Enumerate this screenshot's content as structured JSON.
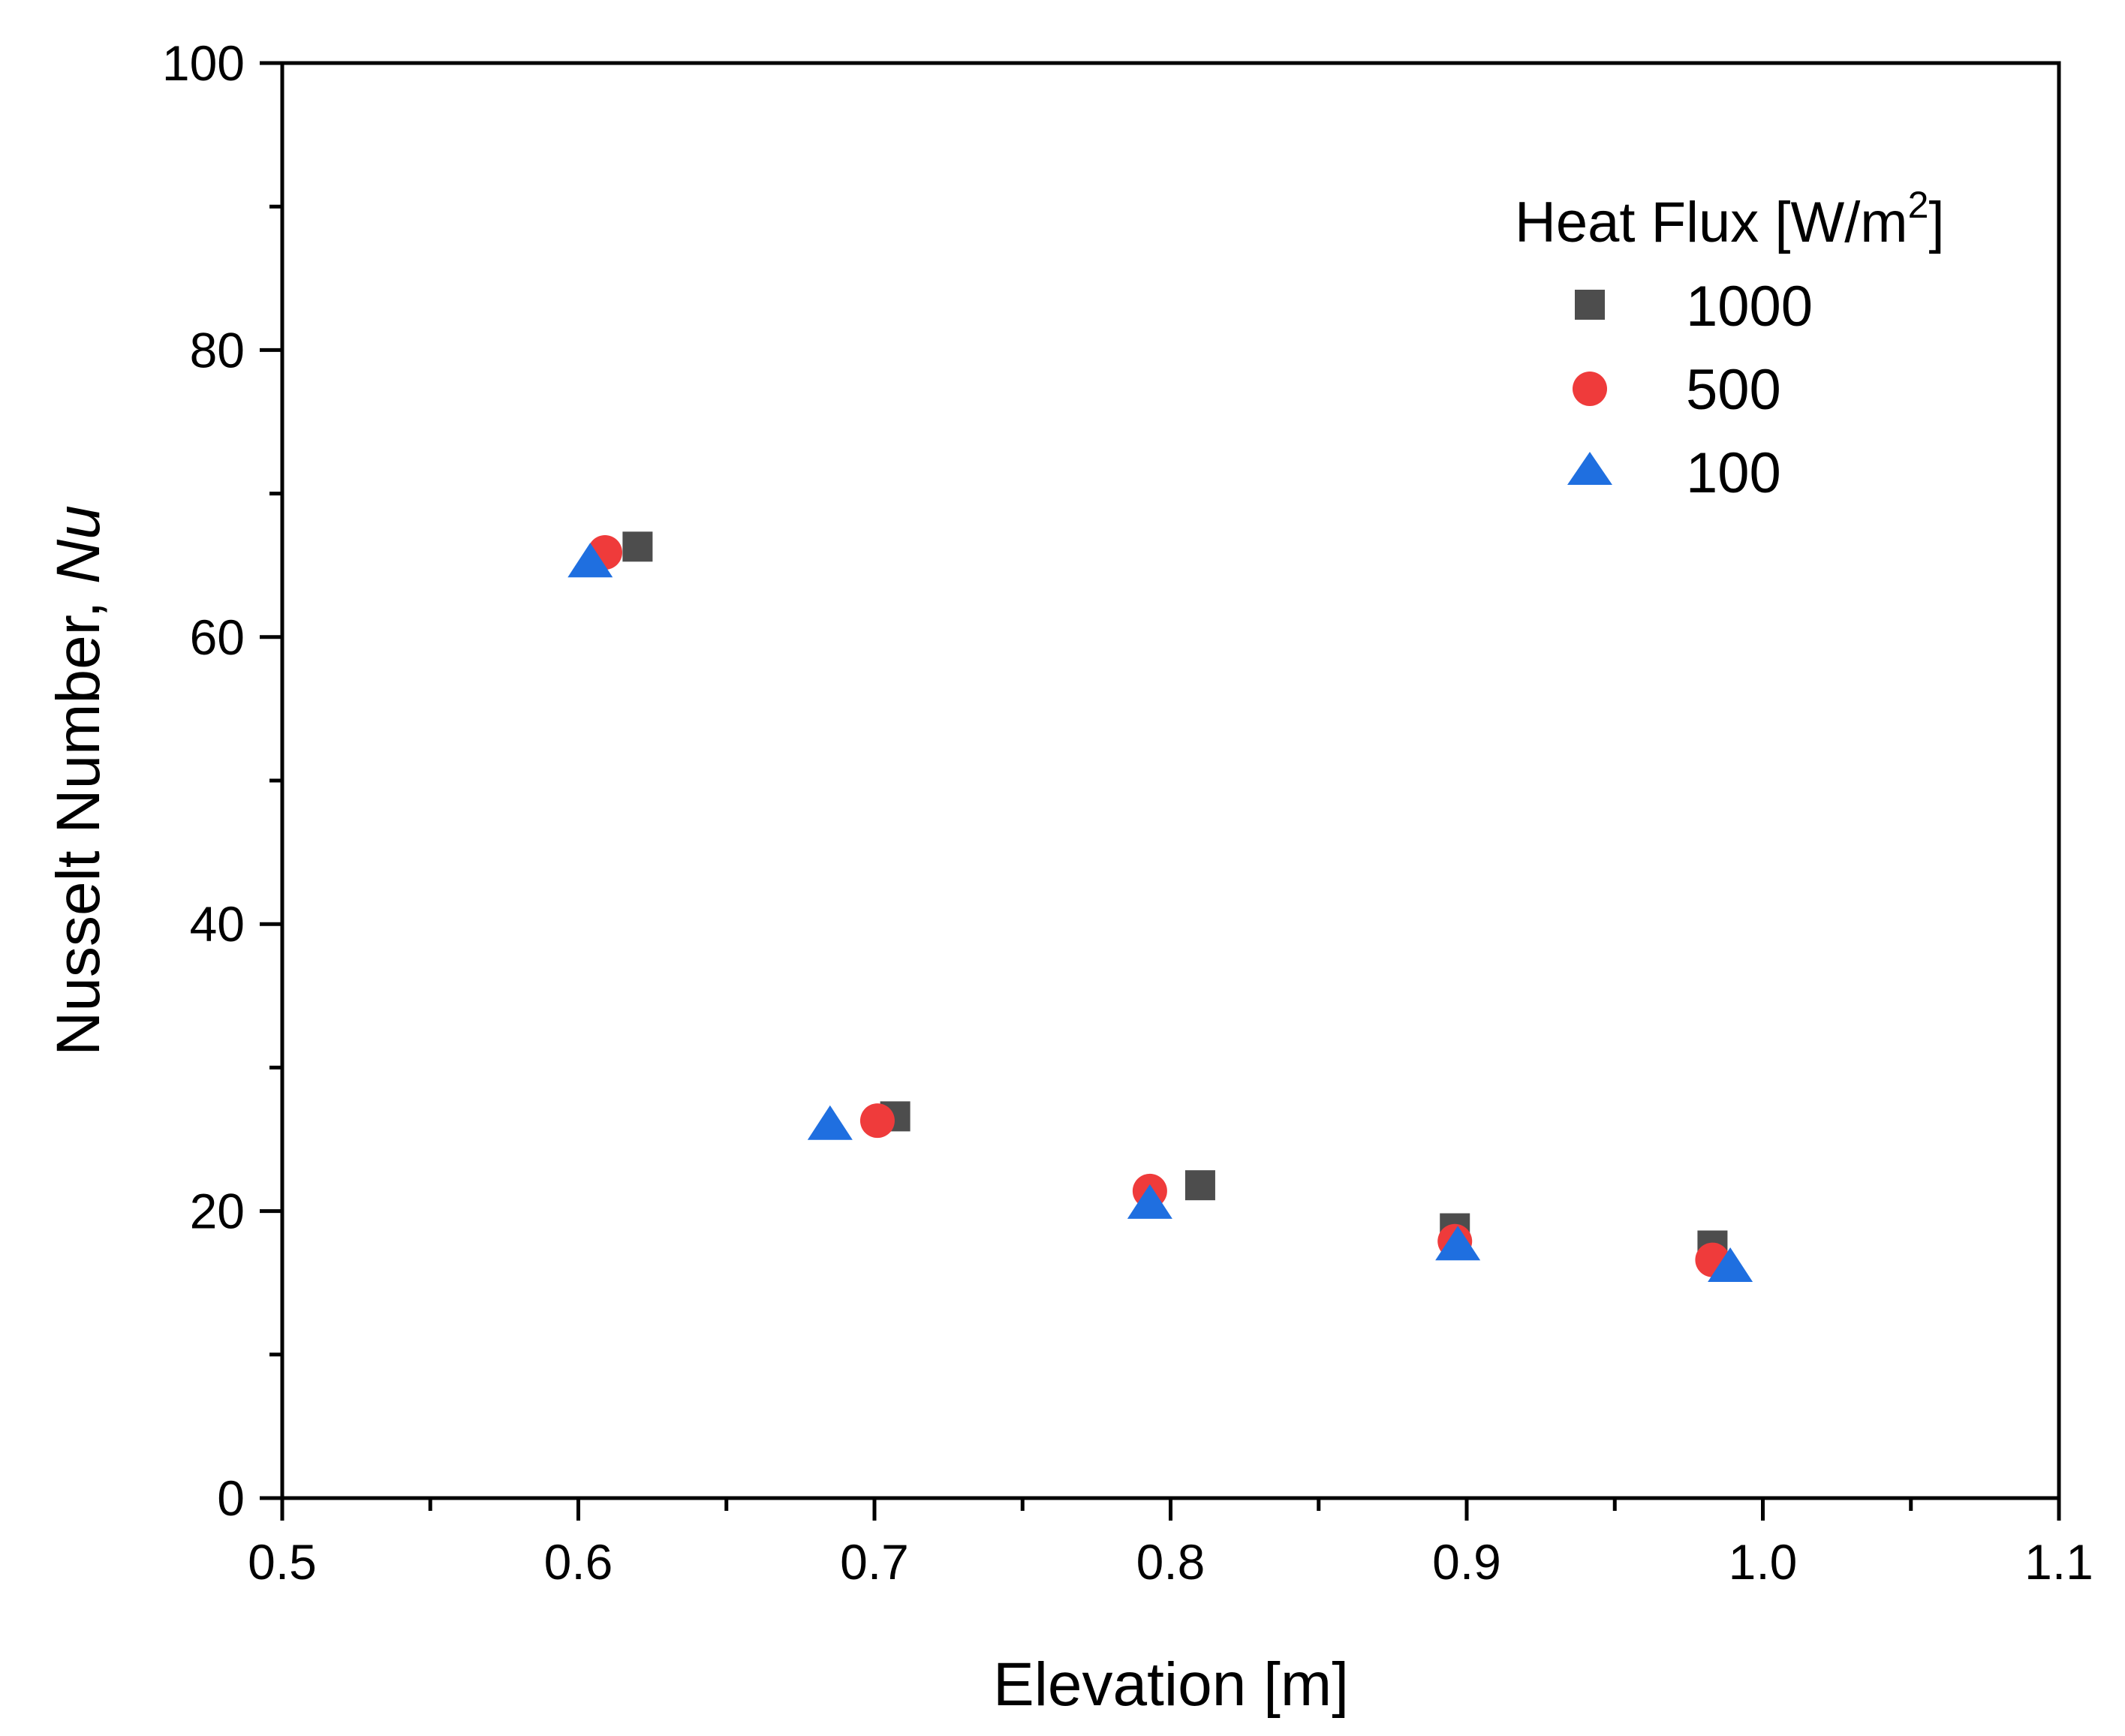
{
  "chart_data": {
    "type": "scatter",
    "title": "",
    "xlabel": "Elevation [m]",
    "ylabel_main": "Nusselt Number, ",
    "ylabel_italic": "Nu",
    "xlim": [
      0.5,
      1.1
    ],
    "ylim": [
      0,
      100
    ],
    "x_ticks": [
      0.5,
      0.6,
      0.7,
      0.8,
      0.9,
      1.0,
      1.1
    ],
    "x_tick_labels": [
      "0.5",
      "0.6",
      "0.7",
      "0.8",
      "0.9",
      "1.0",
      "1.1"
    ],
    "y_ticks": [
      0,
      20,
      40,
      60,
      80,
      100
    ],
    "y_tick_labels": [
      "0",
      "20",
      "40",
      "60",
      "80",
      "100"
    ],
    "grid": false,
    "legend": {
      "title_main": "Heat Flux [W/m",
      "title_sup": "2",
      "title_end": "]",
      "placement": "top-right"
    },
    "series": [
      {
        "name": "1000",
        "marker": "square",
        "color": "#4d4d4d",
        "x": [
          0.62,
          0.707,
          0.81,
          0.896,
          0.983
        ],
        "y": [
          66.3,
          26.6,
          21.8,
          18.8,
          17.6
        ]
      },
      {
        "name": "500",
        "marker": "circle",
        "color": "#ef3b3b",
        "x": [
          0.609,
          0.701,
          0.793,
          0.896,
          0.983
        ],
        "y": [
          65.9,
          26.3,
          21.4,
          17.9,
          16.6
        ]
      },
      {
        "name": "100",
        "marker": "triangle",
        "color": "#1f6fe0",
        "x": [
          0.604,
          0.685,
          0.793,
          0.897,
          0.989
        ],
        "y": [
          65.0,
          25.8,
          20.3,
          17.4,
          15.9
        ]
      }
    ]
  }
}
